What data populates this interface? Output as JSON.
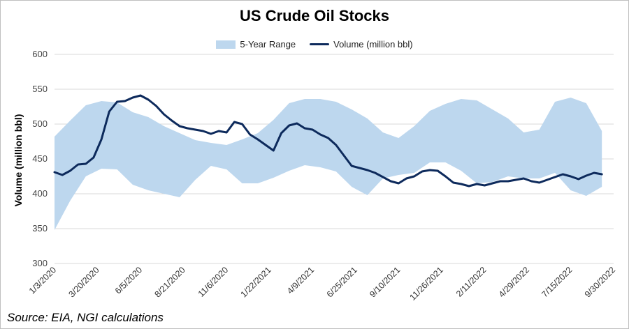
{
  "chart_data": {
    "type": "area",
    "title": "US Crude Oil Stocks",
    "ylabel": "Volume (million bbl)",
    "xlabel": "",
    "ylim": [
      300,
      600
    ],
    "yticks": [
      300,
      350,
      400,
      450,
      500,
      550,
      600
    ],
    "xtick_labels": [
      "1/3/2020",
      "3/20/2020",
      "6/5/2020",
      "8/21/2020",
      "11/6/2020",
      "1/22/2021",
      "4/9/2021",
      "6/25/2021",
      "9/10/2021",
      "11/26/2021",
      "2/11/2022",
      "4/29/2022",
      "7/15/2022",
      "9/30/2022"
    ],
    "grid": true,
    "legend_position": "top",
    "colors": {
      "range": "#bdd7ee",
      "line": "#0d2a5c"
    },
    "series": [
      {
        "name": "5-Year Range",
        "kind": "band",
        "week_index": [
          0,
          4,
          8,
          12,
          16,
          20,
          24,
          28,
          32,
          36,
          40,
          44,
          48,
          52,
          56,
          60,
          64,
          68,
          72,
          76,
          80,
          84,
          88,
          92,
          96,
          100,
          104,
          108,
          112,
          116,
          120,
          124,
          128,
          132,
          136,
          140
        ],
        "upper": [
          482,
          505,
          527,
          533,
          531,
          517,
          510,
          497,
          487,
          477,
          473,
          470,
          478,
          487,
          506,
          530,
          536,
          536,
          532,
          521,
          508,
          488,
          480,
          497,
          519,
          529,
          536,
          534,
          521,
          508,
          488,
          492,
          532,
          538,
          530,
          490
        ],
        "lower": [
          348,
          390,
          425,
          436,
          435,
          413,
          405,
          400,
          395,
          420,
          440,
          435,
          415,
          415,
          423,
          433,
          441,
          438,
          432,
          410,
          398,
          422,
          427,
          430,
          445,
          445,
          433,
          415,
          417,
          425,
          422,
          422,
          430,
          405,
          397,
          410
        ]
      },
      {
        "name": "Volume (million bbl)",
        "kind": "line",
        "week_index": [
          0,
          2,
          4,
          6,
          8,
          10,
          12,
          14,
          16,
          18,
          20,
          22,
          24,
          26,
          28,
          30,
          32,
          34,
          36,
          38,
          40,
          42,
          44,
          46,
          48,
          50,
          52,
          54,
          56,
          58,
          60,
          62,
          64,
          66,
          68,
          70,
          72,
          74,
          76,
          78,
          80,
          82,
          84,
          86,
          88,
          90,
          92,
          94,
          96,
          98,
          100,
          102,
          104,
          106,
          108,
          110,
          112,
          114,
          116,
          118,
          120,
          122,
          124,
          126,
          128,
          130,
          132,
          134,
          136,
          138,
          140
        ],
        "values": [
          431,
          427,
          433,
          442,
          443,
          452,
          478,
          518,
          532,
          533,
          538,
          541,
          535,
          526,
          514,
          505,
          497,
          494,
          492,
          490,
          486,
          490,
          488,
          503,
          500,
          485,
          478,
          470,
          462,
          487,
          498,
          501,
          494,
          492,
          485,
          480,
          470,
          455,
          440,
          437,
          434,
          430,
          424,
          418,
          415,
          422,
          425,
          432,
          434,
          433,
          425,
          416,
          414,
          411,
          414,
          412,
          415,
          418,
          418,
          420,
          422,
          418,
          416,
          420,
          424,
          428,
          425,
          421,
          426,
          430,
          428
        ]
      }
    ]
  },
  "source": "Source: EIA, NGI calculations"
}
